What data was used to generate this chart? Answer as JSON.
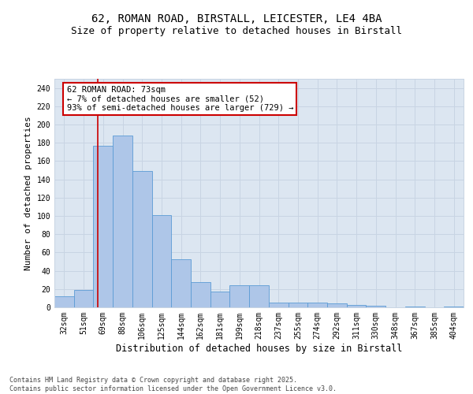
{
  "title_line1": "62, ROMAN ROAD, BIRSTALL, LEICESTER, LE4 4BA",
  "title_line2": "Size of property relative to detached houses in Birstall",
  "xlabel": "Distribution of detached houses by size in Birstall",
  "ylabel": "Number of detached properties",
  "categories": [
    "32sqm",
    "51sqm",
    "69sqm",
    "88sqm",
    "106sqm",
    "125sqm",
    "144sqm",
    "162sqm",
    "181sqm",
    "199sqm",
    "218sqm",
    "237sqm",
    "255sqm",
    "274sqm",
    "292sqm",
    "311sqm",
    "330sqm",
    "348sqm",
    "367sqm",
    "385sqm",
    "404sqm"
  ],
  "values": [
    12,
    19,
    177,
    188,
    149,
    101,
    53,
    28,
    17,
    24,
    24,
    5,
    5,
    5,
    4,
    3,
    2,
    0,
    1,
    0,
    1
  ],
  "bar_color": "#aec6e8",
  "bar_edge_color": "#5b9bd5",
  "grid_color": "#c8d4e3",
  "background_color": "#dce6f1",
  "vline_color": "#cc0000",
  "annotation_text": "62 ROMAN ROAD: 73sqm\n← 7% of detached houses are smaller (52)\n93% of semi-detached houses are larger (729) →",
  "annotation_box_color": "#ffffff",
  "annotation_box_edge": "#cc0000",
  "ylim": [
    0,
    250
  ],
  "yticks": [
    0,
    20,
    40,
    60,
    80,
    100,
    120,
    140,
    160,
    180,
    200,
    220,
    240
  ],
  "footer_text": "Contains HM Land Registry data © Crown copyright and database right 2025.\nContains public sector information licensed under the Open Government Licence v3.0.",
  "title_fontsize": 10,
  "subtitle_fontsize": 9,
  "ylabel_fontsize": 8,
  "xlabel_fontsize": 8.5,
  "tick_fontsize": 7,
  "annot_fontsize": 7.5,
  "footer_fontsize": 6
}
